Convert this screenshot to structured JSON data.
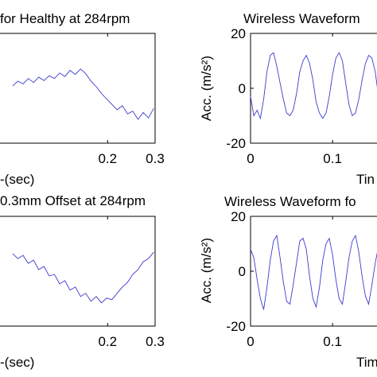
{
  "figure": {
    "background": "#ffffff",
    "line_color": "#3a3ad0",
    "axis_color": "#000000"
  },
  "chart_data": [
    {
      "type": "line",
      "title": "for Healthy at 284rpm",
      "xlabel": "-(sec)",
      "ylabel": "",
      "xlim": [
        0,
        0.3
      ],
      "x_ticks": [
        0.2,
        0.3
      ],
      "x_tick_labels": [
        "0.2",
        "0.3"
      ],
      "y_ticks": [],
      "y_tick_labels": [],
      "grid": false,
      "series": [
        {
          "x": [
            0.0,
            0.011,
            0.022,
            0.033,
            0.044,
            0.055,
            0.066,
            0.077,
            0.088,
            0.099,
            0.11,
            0.121,
            0.132,
            0.143,
            0.154,
            0.165,
            0.176,
            0.187,
            0.198,
            0.209,
            0.22,
            0.231,
            0.242,
            0.253,
            0.264,
            0.275,
            0.286,
            0.297
          ],
          "y": [
            0.55,
            0.62,
            0.58,
            0.66,
            0.6,
            0.68,
            0.63,
            0.7,
            0.66,
            0.74,
            0.69,
            0.78,
            0.72,
            0.8,
            0.73,
            0.62,
            0.54,
            0.44,
            0.36,
            0.28,
            0.2,
            0.26,
            0.14,
            0.18,
            0.06,
            0.16,
            0.08,
            0.22
          ]
        }
      ]
    },
    {
      "type": "line",
      "title": "Wireless Waveform",
      "xlabel": "Tin",
      "ylabel": "Acc. (m/s²)",
      "ylim": [
        -20,
        20
      ],
      "xlim": [
        0,
        0.16
      ],
      "x_ticks": [
        0,
        0.1
      ],
      "x_tick_labels": [
        "0",
        "0.1"
      ],
      "y_ticks": [
        -20,
        0,
        20
      ],
      "y_tick_labels": [
        "-20",
        "0",
        "20"
      ],
      "grid": false,
      "series": [
        {
          "x": [
            0.0,
            0.004,
            0.008,
            0.012,
            0.016,
            0.02,
            0.024,
            0.028,
            0.032,
            0.036,
            0.04,
            0.044,
            0.048,
            0.052,
            0.056,
            0.06,
            0.064,
            0.068,
            0.072,
            0.076,
            0.08,
            0.084,
            0.088,
            0.092,
            0.096,
            0.1,
            0.104,
            0.108,
            0.112,
            0.116,
            0.12,
            0.124,
            0.128,
            0.132,
            0.136,
            0.14,
            0.144,
            0.148,
            0.152,
            0.156,
            0.16
          ],
          "y": [
            -3,
            -10,
            -8,
            -11,
            -4,
            6,
            12,
            13,
            8,
            2,
            -4,
            -9,
            -10,
            -8,
            -2,
            6,
            10,
            12,
            9,
            3,
            -5,
            -9,
            -11,
            -9,
            -3,
            5,
            11,
            13,
            10,
            2,
            -6,
            -10,
            -9,
            -4,
            3,
            9,
            12,
            11,
            6,
            -3,
            -8
          ]
        }
      ]
    },
    {
      "type": "line",
      "title": "0.3mm Offset at 284rpm",
      "xlabel": "-(sec)",
      "ylabel": "",
      "xlim": [
        0,
        0.3
      ],
      "x_ticks": [
        0.2,
        0.3
      ],
      "x_tick_labels": [
        "0.2",
        "0.3"
      ],
      "y_ticks": [],
      "y_tick_labels": [],
      "grid": false,
      "series": [
        {
          "x": [
            0.0,
            0.011,
            0.022,
            0.033,
            0.044,
            0.055,
            0.066,
            0.077,
            0.088,
            0.099,
            0.11,
            0.121,
            0.132,
            0.143,
            0.154,
            0.165,
            0.176,
            0.187,
            0.198,
            0.209,
            0.22,
            0.231,
            0.242,
            0.253,
            0.264,
            0.275,
            0.286,
            0.297
          ],
          "y": [
            0.72,
            0.66,
            0.7,
            0.6,
            0.64,
            0.52,
            0.56,
            0.44,
            0.46,
            0.34,
            0.38,
            0.26,
            0.3,
            0.18,
            0.22,
            0.12,
            0.18,
            0.1,
            0.16,
            0.14,
            0.22,
            0.3,
            0.36,
            0.46,
            0.52,
            0.62,
            0.66,
            0.74
          ]
        }
      ]
    },
    {
      "type": "line",
      "title": "Wireless Waveform fo",
      "xlabel": "Tim",
      "ylabel": "Acc. (m/s²)",
      "ylim": [
        -20,
        20
      ],
      "xlim": [
        0,
        0.16
      ],
      "x_ticks": [
        0,
        0.1
      ],
      "x_tick_labels": [
        "0",
        "0.1"
      ],
      "y_ticks": [
        -20,
        0,
        20
      ],
      "y_tick_labels": [
        "-20",
        "0",
        "20"
      ],
      "grid": false,
      "series": [
        {
          "x": [
            0.0,
            0.004,
            0.008,
            0.012,
            0.016,
            0.02,
            0.024,
            0.028,
            0.032,
            0.036,
            0.04,
            0.044,
            0.048,
            0.052,
            0.056,
            0.06,
            0.064,
            0.068,
            0.072,
            0.076,
            0.08,
            0.084,
            0.088,
            0.092,
            0.096,
            0.1,
            0.104,
            0.108,
            0.112,
            0.116,
            0.12,
            0.124,
            0.128,
            0.132,
            0.136,
            0.14,
            0.144,
            0.148,
            0.152,
            0.156,
            0.16
          ],
          "y": [
            8,
            5,
            -3,
            -10,
            -14,
            -6,
            4,
            11,
            13,
            5,
            -4,
            -11,
            -12,
            -5,
            3,
            11,
            12,
            8,
            -2,
            -10,
            -13,
            -6,
            4,
            10,
            12,
            6,
            -3,
            -10,
            -12,
            -4,
            5,
            11,
            13,
            7,
            -2,
            -9,
            -12,
            -5,
            3,
            9,
            11
          ]
        }
      ]
    }
  ]
}
